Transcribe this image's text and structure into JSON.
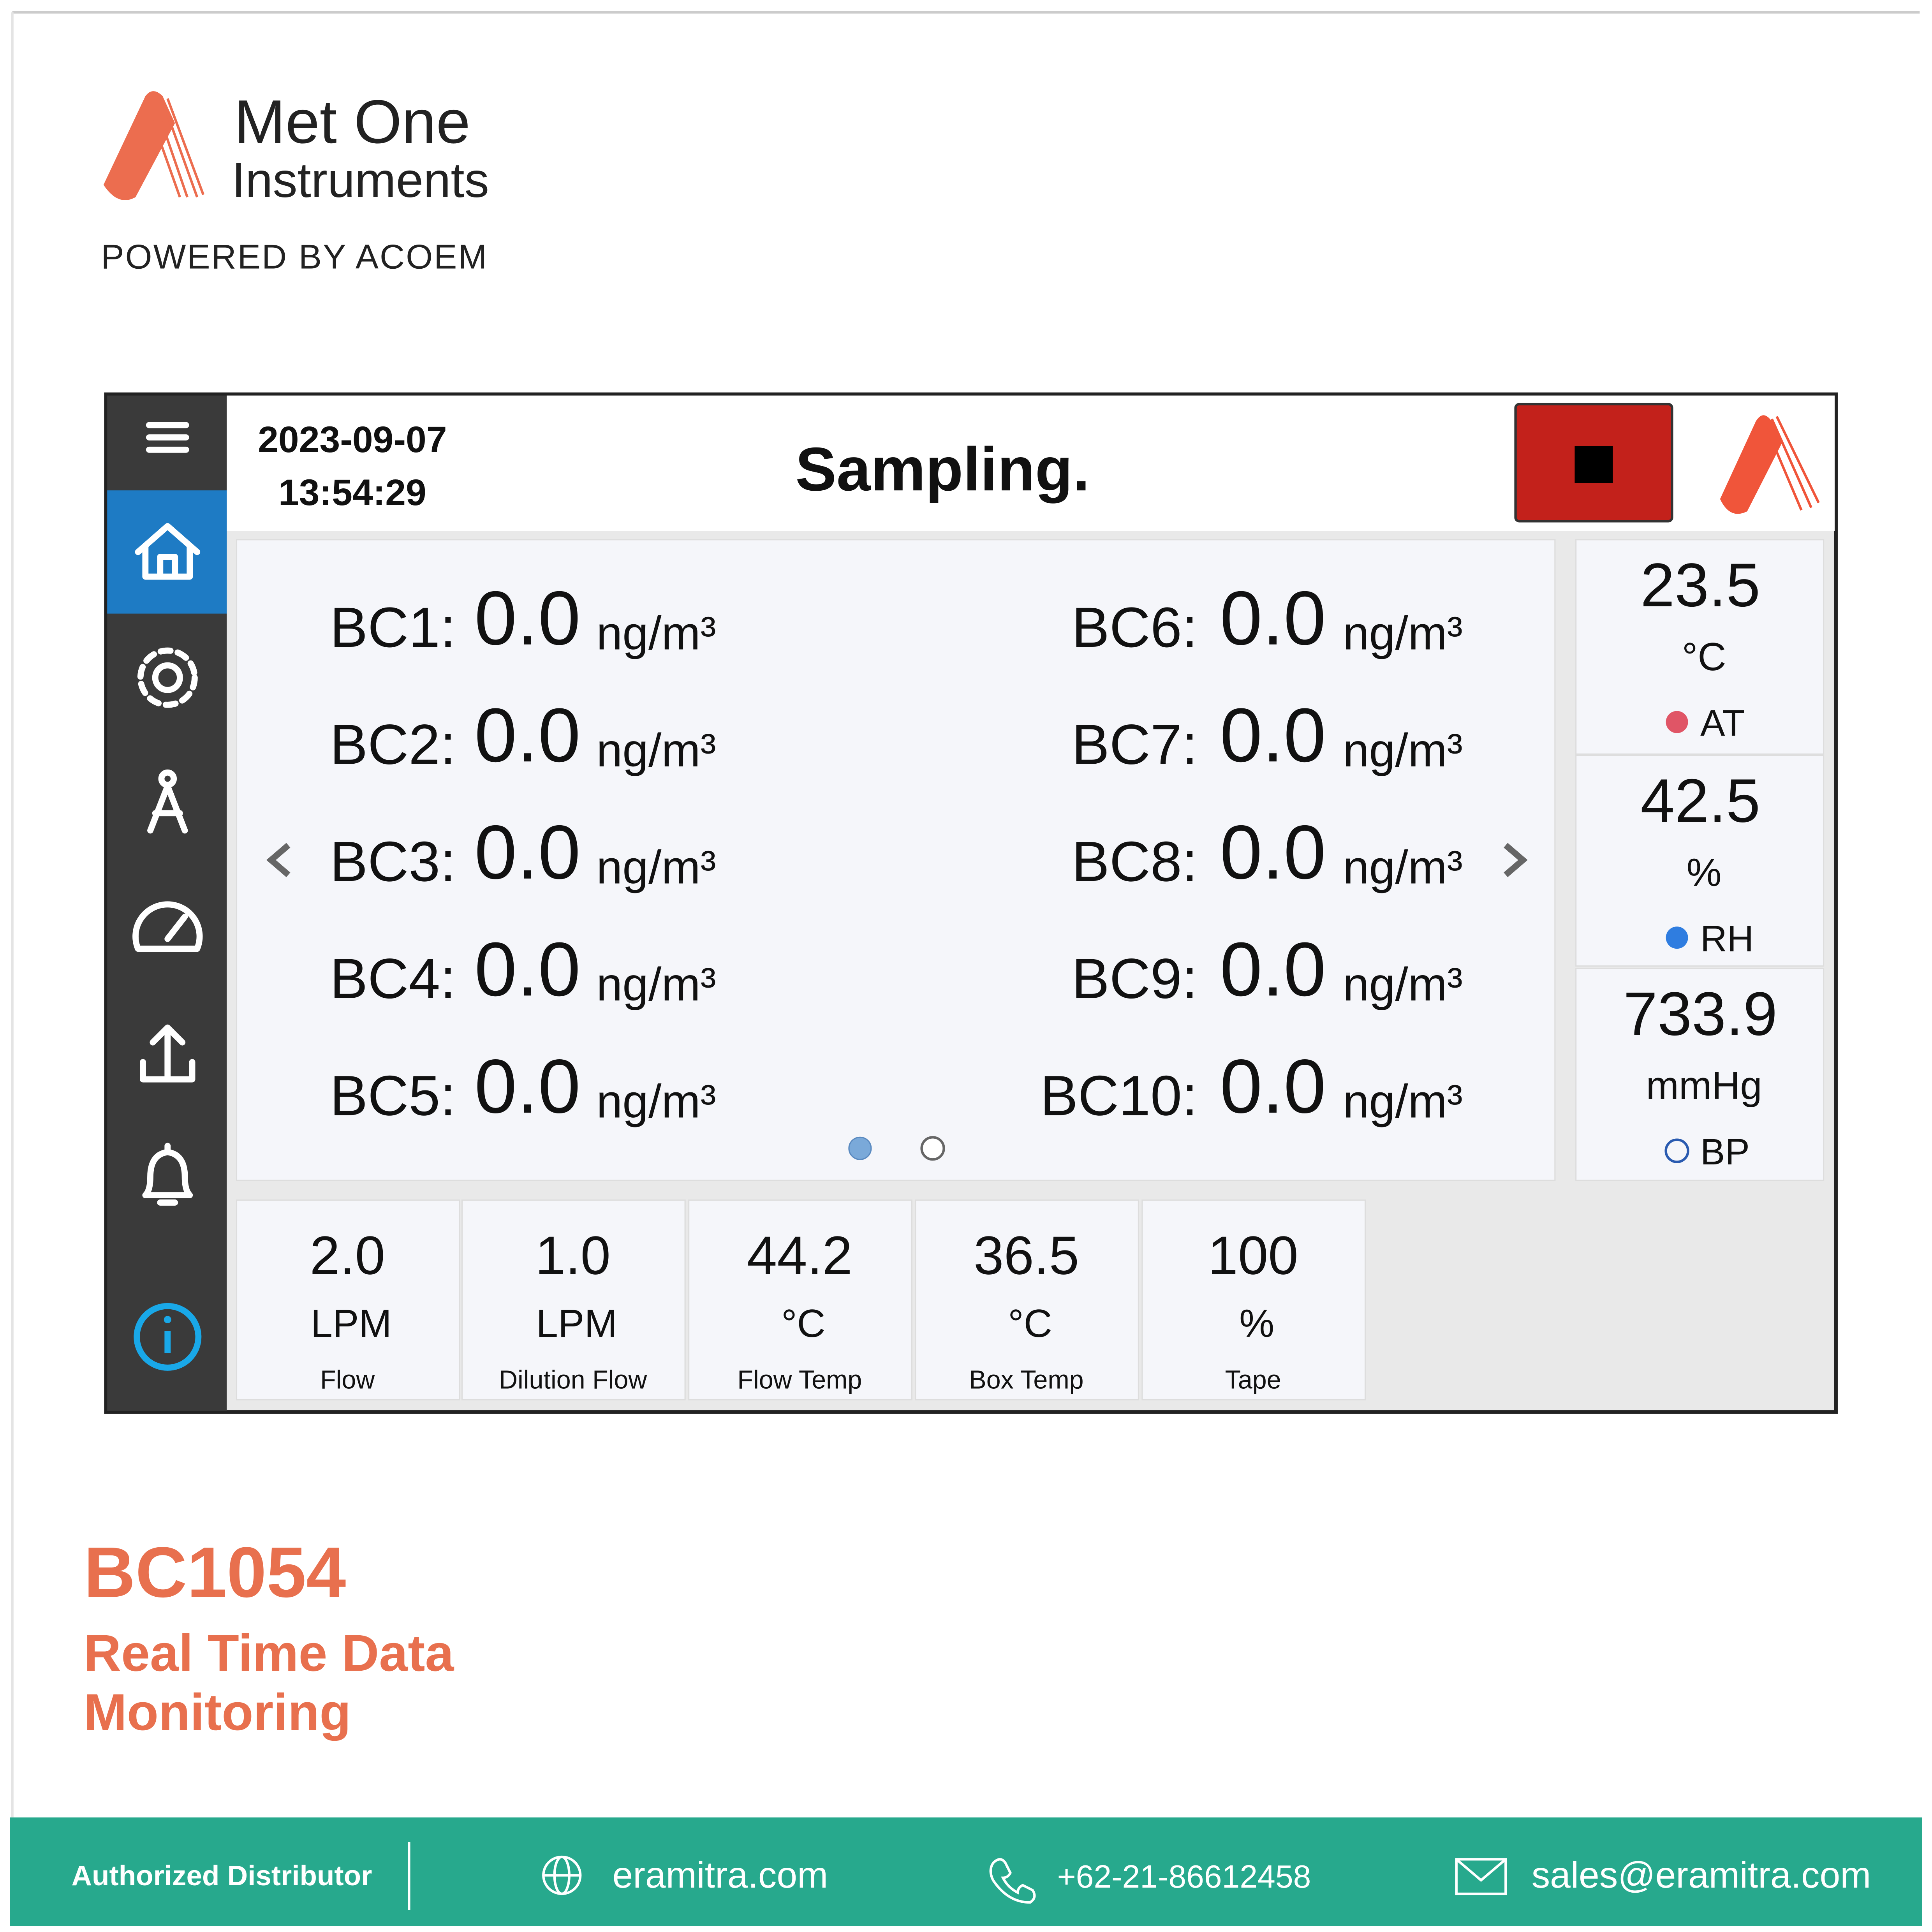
{
  "brand": {
    "name_line1": "Met One",
    "name_line2": "Instruments",
    "tagline": "POWERED BY ACOEM"
  },
  "screen": {
    "date": "2023-09-07",
    "time": "13:54:29",
    "status": "Sampling.",
    "bc_readings": [
      {
        "label": "BC1:",
        "value": "0.0",
        "unit": "ng/m³"
      },
      {
        "label": "BC2:",
        "value": "0.0",
        "unit": "ng/m³"
      },
      {
        "label": "BC3:",
        "value": "0.0",
        "unit": "ng/m³"
      },
      {
        "label": "BC4:",
        "value": "0.0",
        "unit": "ng/m³"
      },
      {
        "label": "BC5:",
        "value": "0.0",
        "unit": "ng/m³"
      },
      {
        "label": "BC6:",
        "value": "0.0",
        "unit": "ng/m³"
      },
      {
        "label": "BC7:",
        "value": "0.0",
        "unit": "ng/m³"
      },
      {
        "label": "BC8:",
        "value": "0.0",
        "unit": "ng/m³"
      },
      {
        "label": "BC9:",
        "value": "0.0",
        "unit": "ng/m³"
      },
      {
        "label": "BC10:",
        "value": "0.0",
        "unit": "ng/m³"
      }
    ],
    "ambient": [
      {
        "value": "23.5",
        "unit": "°C",
        "label": "AT"
      },
      {
        "value": "42.5",
        "unit": "%",
        "label": "RH"
      },
      {
        "value": "733.9",
        "unit": "mmHg",
        "label": "BP"
      }
    ],
    "status_tiles": [
      {
        "value": "2.0",
        "unit": "LPM",
        "label": "Flow"
      },
      {
        "value": "1.0",
        "unit": "LPM",
        "label": "Dilution Flow"
      },
      {
        "value": "44.2",
        "unit": "°C",
        "label": "Flow Temp"
      },
      {
        "value": "36.5",
        "unit": "°C",
        "label": "Box Temp"
      },
      {
        "value": "100",
        "unit": "%",
        "label": "Tape"
      }
    ]
  },
  "product": {
    "model": "BC1054",
    "headline_line1": "Real Time Data",
    "headline_line2": "Monitoring"
  },
  "footer": {
    "label": "Authorized Distributor",
    "website": "eramitra.com",
    "phone": "+62-21-86612458",
    "email": "sales@eramitra.com"
  }
}
